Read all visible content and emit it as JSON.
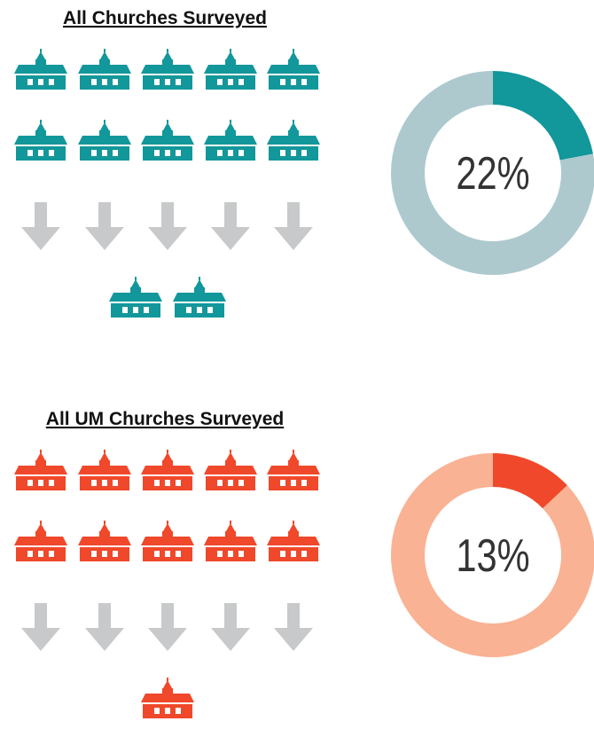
{
  "chart_data": [
    {
      "type": "donut",
      "title": "All Churches Surveyed",
      "values": [
        22,
        78
      ],
      "value_labels": [
        "22%",
        null
      ],
      "colors": [
        "#12979b",
        "#adc9ce"
      ],
      "icons_total": 10,
      "icons_result": 2
    },
    {
      "type": "donut",
      "title": "All UM Churches Surveyed",
      "values": [
        13,
        87
      ],
      "value_labels": [
        "13%",
        null
      ],
      "colors": [
        "#f0482a",
        "#f9b293"
      ],
      "icons_total": 10,
      "icons_result": 1
    }
  ]
}
